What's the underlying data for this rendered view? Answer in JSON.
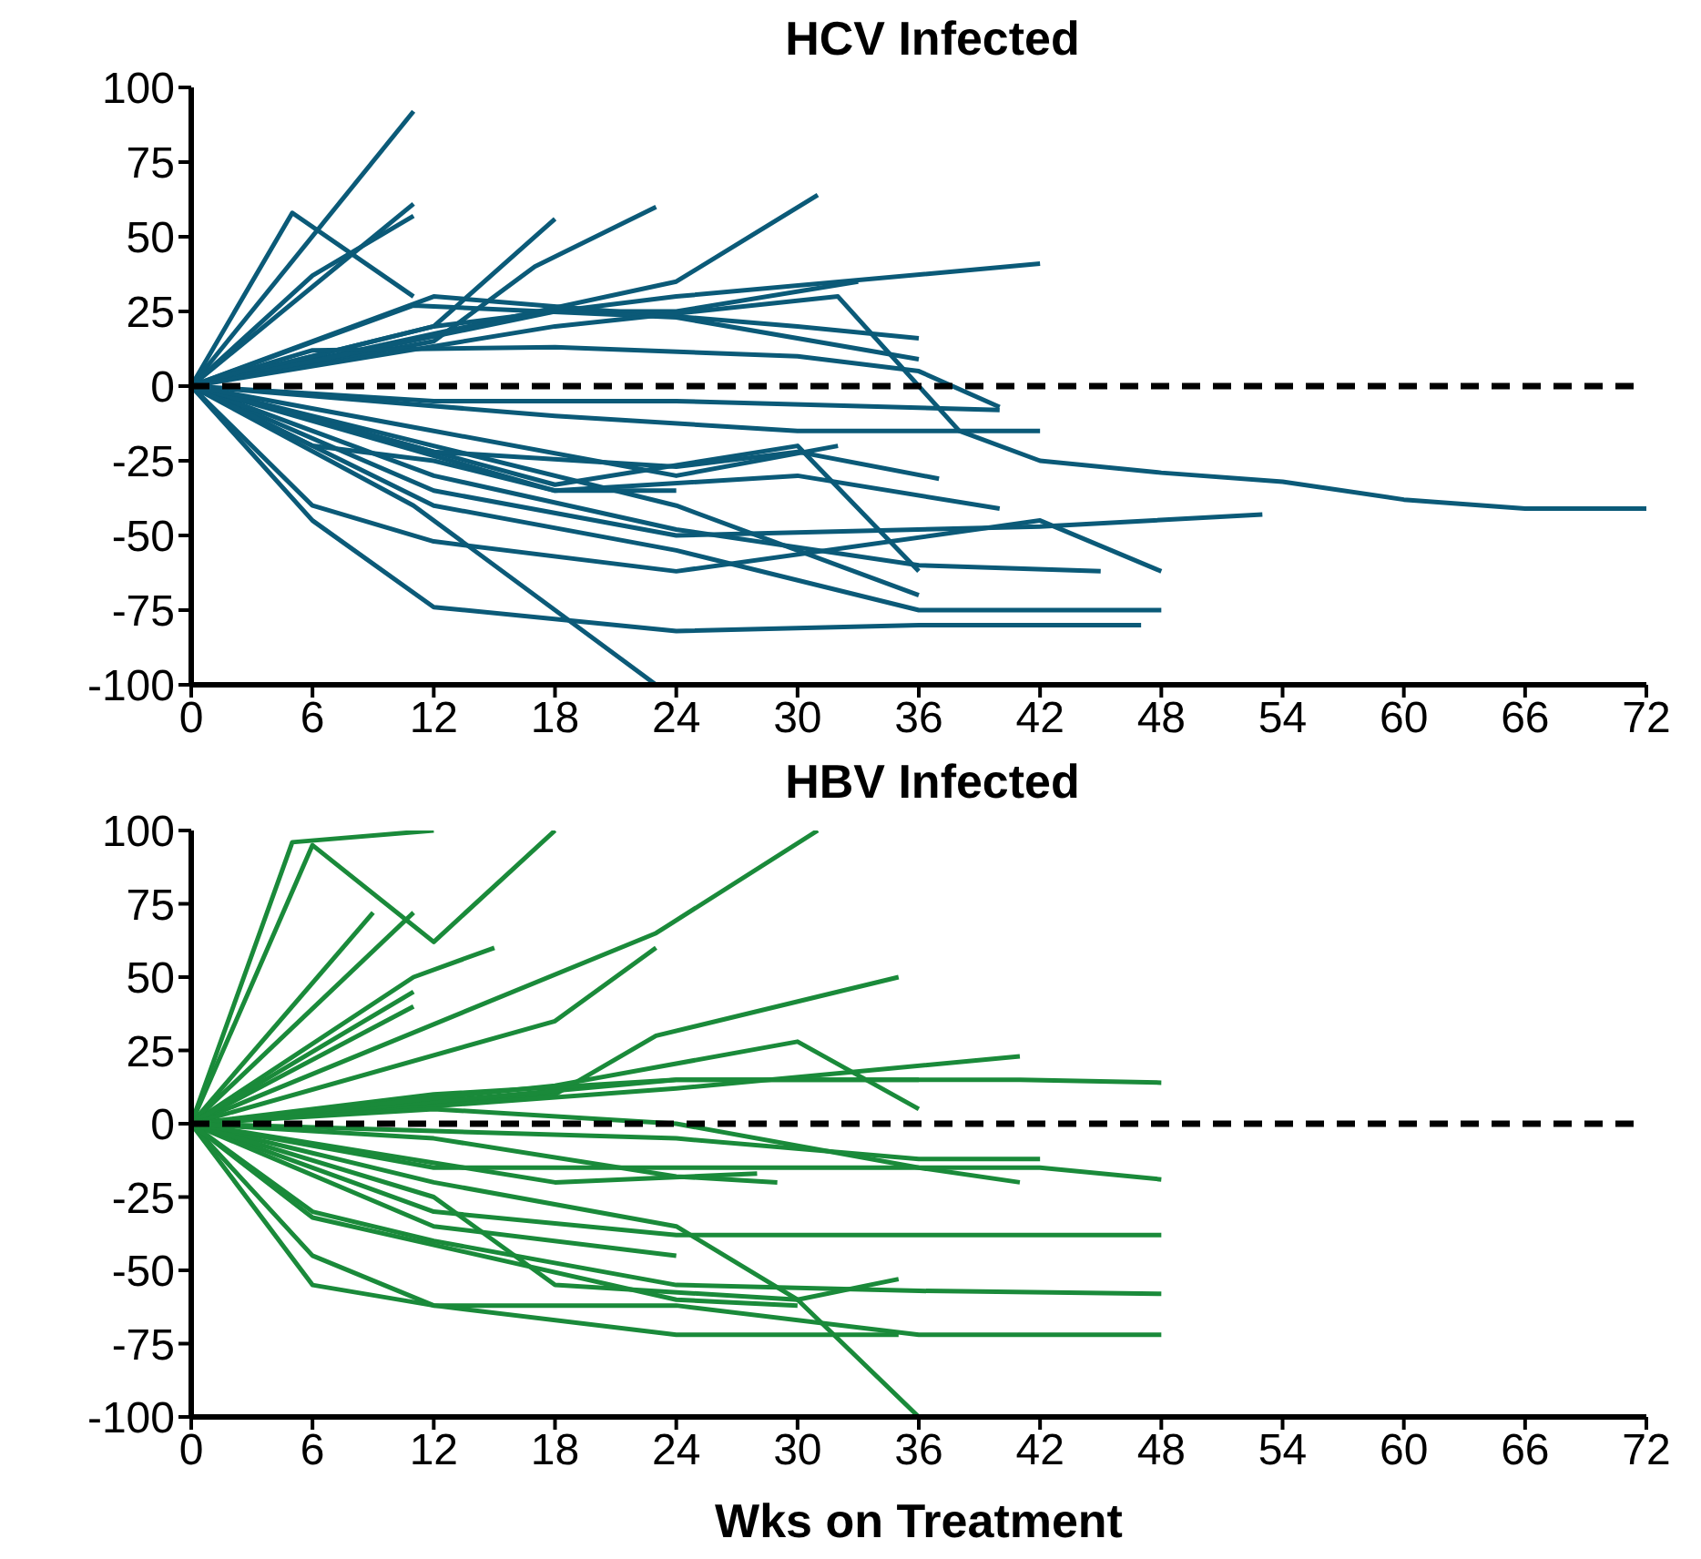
{
  "chart_data": [
    {
      "type": "line",
      "title": "HCV Infected",
      "xlim": [
        0,
        72
      ],
      "xticks": [
        0,
        6,
        12,
        18,
        24,
        30,
        36,
        42,
        48,
        54,
        60,
        66,
        72
      ],
      "ylim": [
        -100,
        100
      ],
      "yticks": [
        -100,
        -75,
        -50,
        -25,
        0,
        25,
        50,
        75,
        100
      ],
      "grid": false,
      "legend": false,
      "marker": "none",
      "line_style": "solid",
      "ref_lines": [
        {
          "axis": "y",
          "value": 0,
          "color": "#000000",
          "line_style": "dashed"
        }
      ],
      "series": [
        {
          "color": "#0b5a78",
          "x": [
            0,
            5,
            11
          ],
          "values": [
            0,
            58,
            30
          ]
        },
        {
          "color": "#0b5a78",
          "x": [
            0,
            11
          ],
          "values": [
            0,
            92
          ]
        },
        {
          "color": "#0b5a78",
          "x": [
            0,
            11
          ],
          "values": [
            0,
            61
          ]
        },
        {
          "color": "#0b5a78",
          "x": [
            0,
            6,
            11
          ],
          "values": [
            0,
            37,
            57
          ]
        },
        {
          "color": "#0b5a78",
          "x": [
            0,
            12,
            18
          ],
          "values": [
            0,
            20,
            56
          ]
        },
        {
          "color": "#0b5a78",
          "x": [
            0,
            12,
            17,
            23
          ],
          "values": [
            0,
            15,
            40,
            60
          ]
        },
        {
          "color": "#0b5a78",
          "x": [
            0,
            24,
            31
          ],
          "values": [
            0,
            35,
            64
          ]
        },
        {
          "color": "#0b5a78",
          "x": [
            0,
            12,
            24,
            42
          ],
          "values": [
            0,
            20,
            30,
            41
          ]
        },
        {
          "color": "#0b5a78",
          "x": [
            0,
            18,
            24,
            33
          ],
          "values": [
            0,
            25,
            25,
            35
          ]
        },
        {
          "color": "#0b5a78",
          "x": [
            0,
            12,
            30,
            36
          ],
          "values": [
            0,
            30,
            20,
            16
          ]
        },
        {
          "color": "#0b5a78",
          "x": [
            0,
            11,
            24,
            36
          ],
          "values": [
            0,
            27,
            23,
            9
          ]
        },
        {
          "color": "#0b5a78",
          "x": [
            0,
            6,
            18,
            30,
            36,
            40
          ],
          "values": [
            0,
            12,
            13,
            10,
            5,
            -7
          ]
        },
        {
          "color": "#0b5a78",
          "x": [
            0,
            18,
            32,
            38,
            42,
            48,
            54,
            60,
            66,
            72
          ],
          "values": [
            0,
            20,
            30,
            -15,
            -25,
            -29,
            -32,
            -38,
            -41,
            -41
          ]
        },
        {
          "color": "#0b5a78",
          "x": [
            0,
            6,
            12,
            24,
            36,
            47
          ],
          "values": [
            0,
            -45,
            -74,
            -82,
            -80,
            -80
          ]
        },
        {
          "color": "#0b5a78",
          "x": [
            0,
            11,
            23,
            47
          ],
          "values": [
            0,
            -40,
            -100,
            -100
          ]
        },
        {
          "color": "#0b5a78",
          "x": [
            0,
            12,
            24,
            36,
            48
          ],
          "values": [
            0,
            -40,
            -55,
            -75,
            -75
          ]
        },
        {
          "color": "#0b5a78",
          "x": [
            0,
            6,
            12,
            24,
            42,
            48
          ],
          "values": [
            0,
            -40,
            -52,
            -62,
            -45,
            -62
          ]
        },
        {
          "color": "#0b5a78",
          "x": [
            0,
            12,
            24,
            42,
            53
          ],
          "values": [
            0,
            -35,
            -50,
            -47,
            -43
          ]
        },
        {
          "color": "#0b5a78",
          "x": [
            0,
            12,
            24,
            36,
            45
          ],
          "values": [
            0,
            -30,
            -48,
            -60,
            -62
          ]
        },
        {
          "color": "#0b5a78",
          "x": [
            0,
            18,
            30,
            36
          ],
          "values": [
            0,
            -33,
            -20,
            -62
          ]
        },
        {
          "color": "#0b5a78",
          "x": [
            0,
            12,
            24,
            36
          ],
          "values": [
            0,
            -20,
            -40,
            -70
          ]
        },
        {
          "color": "#0b5a78",
          "x": [
            0,
            18,
            30,
            40
          ],
          "values": [
            0,
            -35,
            -30,
            -41
          ]
        },
        {
          "color": "#0b5a78",
          "x": [
            0,
            12,
            24,
            30,
            37
          ],
          "values": [
            0,
            -22,
            -27,
            -22,
            -31
          ]
        },
        {
          "color": "#0b5a78",
          "x": [
            0,
            18,
            30,
            42
          ],
          "values": [
            0,
            -10,
            -15,
            -15
          ]
        },
        {
          "color": "#0b5a78",
          "x": [
            0,
            12,
            24,
            40
          ],
          "values": [
            0,
            -5,
            -5,
            -8
          ]
        },
        {
          "color": "#0b5a78",
          "x": [
            0,
            12,
            24,
            32
          ],
          "values": [
            0,
            -15,
            -30,
            -20
          ]
        },
        {
          "color": "#0b5a78",
          "x": [
            0,
            6,
            12,
            18,
            24
          ],
          "values": [
            0,
            -20,
            -25,
            -35,
            -35
          ]
        }
      ]
    },
    {
      "type": "line",
      "title": "HBV Infected",
      "xlabel": "Wks on Treatment",
      "xlim": [
        0,
        72
      ],
      "xticks": [
        0,
        6,
        12,
        18,
        24,
        30,
        36,
        42,
        48,
        54,
        60,
        66,
        72
      ],
      "ylim": [
        -100,
        100
      ],
      "yticks": [
        -100,
        -75,
        -50,
        -25,
        0,
        25,
        50,
        75,
        100
      ],
      "grid": false,
      "legend": false,
      "marker": "none",
      "line_style": "solid",
      "ref_lines": [
        {
          "axis": "y",
          "value": 0,
          "color": "#000000",
          "line_style": "dashed"
        }
      ],
      "series": [
        {
          "color": "#1a8a3a",
          "x": [
            0,
            5,
            12
          ],
          "values": [
            0,
            96,
            100
          ]
        },
        {
          "color": "#1a8a3a",
          "x": [
            0,
            6,
            12,
            18
          ],
          "values": [
            0,
            95,
            62,
            100
          ]
        },
        {
          "color": "#1a8a3a",
          "x": [
            0,
            23,
            31
          ],
          "values": [
            0,
            65,
            100
          ]
        },
        {
          "color": "#1a8a3a",
          "x": [
            0,
            9
          ],
          "values": [
            0,
            72
          ]
        },
        {
          "color": "#1a8a3a",
          "x": [
            0,
            11
          ],
          "values": [
            0,
            72
          ]
        },
        {
          "color": "#1a8a3a",
          "x": [
            0,
            11,
            15
          ],
          "values": [
            0,
            50,
            60
          ]
        },
        {
          "color": "#1a8a3a",
          "x": [
            0,
            11
          ],
          "values": [
            0,
            40
          ]
        },
        {
          "color": "#1a8a3a",
          "x": [
            0,
            11
          ],
          "values": [
            0,
            45
          ]
        },
        {
          "color": "#1a8a3a",
          "x": [
            0,
            18,
            23
          ],
          "values": [
            0,
            35,
            60
          ]
        },
        {
          "color": "#1a8a3a",
          "x": [
            0,
            18,
            23,
            35
          ],
          "values": [
            0,
            10,
            30,
            50
          ]
        },
        {
          "color": "#1a8a3a",
          "x": [
            0,
            24,
            41
          ],
          "values": [
            0,
            12,
            23
          ]
        },
        {
          "color": "#1a8a3a",
          "x": [
            0,
            24,
            41,
            48
          ],
          "values": [
            0,
            15,
            15,
            14
          ]
        },
        {
          "color": "#1a8a3a",
          "x": [
            0,
            12,
            24,
            36
          ],
          "values": [
            0,
            10,
            15,
            15
          ]
        },
        {
          "color": "#1a8a3a",
          "x": [
            0,
            18,
            30,
            36
          ],
          "values": [
            0,
            13,
            28,
            5
          ]
        },
        {
          "color": "#1a8a3a",
          "x": [
            0,
            12,
            24,
            36,
            41
          ],
          "values": [
            0,
            5,
            0,
            -15,
            -20
          ]
        },
        {
          "color": "#1a8a3a",
          "x": [
            0,
            12,
            18,
            24,
            30,
            36,
            42,
            48
          ],
          "values": [
            0,
            -15,
            -15,
            -15,
            -15,
            -15,
            -15,
            -19
          ]
        },
        {
          "color": "#1a8a3a",
          "x": [
            0,
            24,
            36,
            42
          ],
          "values": [
            0,
            -5,
            -12,
            -12
          ]
        },
        {
          "color": "#1a8a3a",
          "x": [
            0,
            6,
            12,
            24,
            30,
            36
          ],
          "values": [
            0,
            -10,
            -20,
            -35,
            -60,
            -100
          ]
        },
        {
          "color": "#1a8a3a",
          "x": [
            0,
            6,
            12,
            24,
            36,
            48
          ],
          "values": [
            0,
            -30,
            -40,
            -55,
            -57,
            -58
          ]
        },
        {
          "color": "#1a8a3a",
          "x": [
            0,
            6,
            12,
            24,
            36,
            48
          ],
          "values": [
            0,
            -45,
            -62,
            -62,
            -72,
            -72
          ]
        },
        {
          "color": "#1a8a3a",
          "x": [
            0,
            6,
            12,
            24,
            35
          ],
          "values": [
            0,
            -55,
            -62,
            -72,
            -72
          ]
        },
        {
          "color": "#1a8a3a",
          "x": [
            0,
            12,
            24,
            48
          ],
          "values": [
            0,
            -30,
            -38,
            -38
          ]
        },
        {
          "color": "#1a8a3a",
          "x": [
            0,
            12,
            24
          ],
          "values": [
            0,
            -35,
            -45
          ]
        },
        {
          "color": "#1a8a3a",
          "x": [
            0,
            12,
            18,
            30,
            35
          ],
          "values": [
            0,
            -25,
            -55,
            -60,
            -53
          ]
        },
        {
          "color": "#1a8a3a",
          "x": [
            0,
            6,
            24,
            30
          ],
          "values": [
            0,
            -32,
            -60,
            -62
          ]
        },
        {
          "color": "#1a8a3a",
          "x": [
            0,
            18,
            28
          ],
          "values": [
            0,
            -20,
            -17
          ]
        },
        {
          "color": "#1a8a3a",
          "x": [
            0,
            12,
            24,
            29
          ],
          "values": [
            0,
            -5,
            -18,
            -20
          ]
        }
      ]
    }
  ]
}
